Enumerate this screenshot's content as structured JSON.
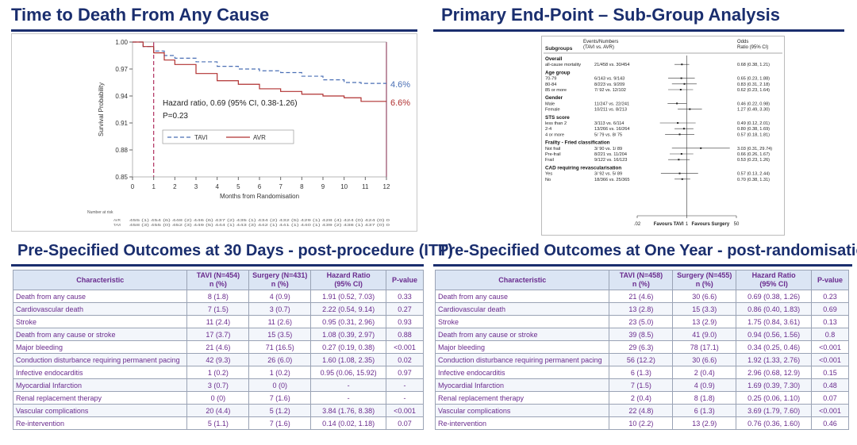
{
  "km": {
    "title": "Time to Death From Any Cause",
    "ylabel": "Survival Probability",
    "xlabel": "Months from Randomisation",
    "annotation_line1": "Hazard ratio, 0.69 (95% CI, 0.38-1.26)",
    "annotation_line2": "P=0.23",
    "tavi_label": "TAVI",
    "avr_label": "AVR",
    "tavi_end": "4.6%",
    "avr_end": "6.6%",
    "number_at_risk": "Number at risk",
    "risk_avr_label": "AVR",
    "risk_tavi_label": "TAVI",
    "risk_avr": "455 (1) 454 (6) 448 (2) 446 (6) 437 (2) 435 (1) 434 (2) 432 (5) 429 (1) 428 (4) 424 (0) 424 (0) 0",
    "risk_tavi": "458 (3) 455 (0) 452 (3) 449 (5) 444 (1) 443 (3) 442 (1) 441 (1) 440 (1) 439 (2) 438 (1) 437 (0) 0",
    "colors": {
      "tavi": "#4a6fb5",
      "avr": "#b03030",
      "marker": "#b03060"
    }
  },
  "chart_data": [
    {
      "type": "line",
      "title": "Time to Death From Any Cause",
      "xlabel": "Months from Randomisation",
      "ylabel": "Survival Probability",
      "xlim": [
        0,
        12
      ],
      "ylim": [
        0.85,
        1.0
      ],
      "x_ticks": [
        0,
        1,
        2,
        3,
        4,
        5,
        6,
        7,
        8,
        9,
        10,
        11,
        12
      ],
      "y_ticks": [
        "0.85",
        "0.88",
        "0.91",
        "0.94",
        "0.97",
        "1.00"
      ],
      "series": [
        {
          "name": "TAVI",
          "x": [
            0,
            0.5,
            1,
            1.5,
            2,
            3,
            4,
            5,
            6,
            7,
            8,
            9,
            10,
            10.8,
            12
          ],
          "values": [
            1.0,
            0.995,
            0.99,
            0.985,
            0.982,
            0.978,
            0.973,
            0.97,
            0.968,
            0.966,
            0.962,
            0.958,
            0.955,
            0.954,
            0.954
          ]
        },
        {
          "name": "AVR",
          "x": [
            0,
            0.5,
            1,
            1.5,
            2,
            3,
            4,
            5,
            6,
            7,
            8,
            9,
            10,
            10.8,
            12
          ],
          "values": [
            1.0,
            0.995,
            0.988,
            0.98,
            0.975,
            0.965,
            0.957,
            0.953,
            0.948,
            0.945,
            0.942,
            0.94,
            0.938,
            0.934,
            0.934
          ]
        }
      ]
    },
    {
      "type": "scatter",
      "title": "Primary End-Point – Sub-Group Analysis",
      "xlabel": "Favours TAVI / Favours Surgery",
      "xlim": [
        0.02,
        50
      ],
      "x_ticks": [
        ".02",
        "1",
        "50"
      ],
      "categories": [
        "all-cause mortality",
        "70-79",
        "80-84",
        "85 or more",
        "Male",
        "Female",
        "less than 2",
        "2-4",
        "4 or more",
        "Not frail",
        "Pre-frail",
        "Frail",
        "Yes",
        "No"
      ],
      "values": [
        0.68,
        0.65,
        0.83,
        0.62,
        0.46,
        1.27,
        0.49,
        0.8,
        0.57,
        3.03,
        0.66,
        0.53,
        0.57,
        0.7
      ],
      "lower": [
        0.38,
        0.23,
        0.31,
        0.23,
        0.22,
        0.49,
        0.12,
        0.38,
        0.18,
        0.31,
        0.26,
        0.23,
        0.13,
        0.38
      ],
      "upper": [
        1.21,
        1.88,
        2.18,
        1.64,
        0.98,
        3.3,
        2.01,
        1.69,
        1.81,
        29.74,
        1.67,
        1.26,
        2.44,
        1.31
      ]
    }
  ],
  "forest": {
    "title": "Primary End-Point – Sub-Group Analysis",
    "hdr_subgroups": "Subgroups",
    "hdr_events1": "Events/Numbers",
    "hdr_events2": "(TAVI vs. AVR)",
    "hdr_odds1": "Odds",
    "hdr_odds2": "Ratio (95% CI)",
    "favours_tavi": "Favours TAVI",
    "favours_surgery": "Favours Surgery",
    "tick_low": ".02",
    "tick_mid": "1",
    "tick_high": "50",
    "groups": [
      {
        "name": "Overall",
        "rows": [
          {
            "label": "all-cause mortality",
            "events": "21/458  vs.  30/454",
            "ci": "0.68 (0.38, 1.21)"
          }
        ]
      },
      {
        "name": "Age group",
        "rows": [
          {
            "label": "70-79",
            "events": "6/143  vs.   9/143",
            "ci": "0.65 (0.23, 1.88)"
          },
          {
            "label": "80-84",
            "events": "8/223  vs.   9/209",
            "ci": "0.83 (0.31, 2.18)"
          },
          {
            "label": "85 or more",
            "events": "7/ 92  vs.  12/102",
            "ci": "0.62 (0.23, 1.64)"
          }
        ]
      },
      {
        "name": "Gender",
        "rows": [
          {
            "label": "Male",
            "events": "11/247  vs.  22/241",
            "ci": "0.46 (0.22, 0.98)"
          },
          {
            "label": "Female",
            "events": "10/211  vs.   8/213",
            "ci": "1.27 (0.49, 3.30)"
          }
        ]
      },
      {
        "name": "STS score",
        "rows": [
          {
            "label": "less than 2",
            "events": "3/113  vs.   6/114",
            "ci": "0.49 (0.12, 2.01)"
          },
          {
            "label": "2-4",
            "events": "13/266  vs.  16/264",
            "ci": "0.80 (0.38, 1.69)"
          },
          {
            "label": "4 or more",
            "events": "5/ 79  vs.   8/ 75",
            "ci": "0.57 (0.18, 1.81)"
          }
        ]
      },
      {
        "name": "Frailty - Fried classification",
        "rows": [
          {
            "label": "Not frail",
            "events": "3/ 90  vs.   1/ 89",
            "ci": "3.03 (0.31, 29.74)"
          },
          {
            "label": "Pre-frail",
            "events": "8/221  vs.  11/204",
            "ci": "0.66 (0.26, 1.67)"
          },
          {
            "label": "Frail",
            "events": "9/122  vs.  16/123",
            "ci": "0.53 (0.23, 1.26)"
          }
        ]
      },
      {
        "name": "CAD requiring revascularisation",
        "rows": [
          {
            "label": "Yes",
            "events": "3/ 92  vs.   5/ 89",
            "ci": "0.57 (0.13, 2.44)"
          },
          {
            "label": "No",
            "events": "18/366  vs.  25/365",
            "ci": "0.70 (0.38, 1.31)"
          }
        ]
      }
    ]
  },
  "table30": {
    "title": "Pre-Specified Outcomes at 30 Days - post-procedure (ITT)",
    "headers": [
      "Characteristic",
      "TAVI (N=454)\nn (%)",
      "Surgery (N=431)\nn (%)",
      "Hazard Ratio\n(95% CI)",
      "P-value"
    ],
    "rows": [
      [
        "Death from any cause",
        "8 (1.8)",
        "4 (0.9)",
        "1.91 (0.52, 7.03)",
        "0.33"
      ],
      [
        "Cardiovascular death",
        "7  (1.5)",
        "3 (0.7)",
        "2.22 (0.54, 9.14)",
        "0.27"
      ],
      [
        "Stroke",
        "11 (2.4)",
        "11 (2.6)",
        "0.95 (0.31, 2.96)",
        "0.93"
      ],
      [
        "Death from any cause or stroke",
        "17 (3.7)",
        "15 (3.5)",
        "1.08 (0.39, 2.97)",
        "0.88"
      ],
      [
        "Major bleeding",
        "21 (4.6)",
        "71 (16.5)",
        "0.27 (0.19, 0.38)",
        "<0.001"
      ],
      [
        "Conduction disturbance requiring permanent pacing",
        "42 (9.3)",
        "26 (6.0)",
        "1.60 (1.08, 2.35)",
        "0.02"
      ],
      [
        "Infective endocarditis",
        "1 (0.2)",
        "1 (0.2)",
        "0.95 (0.06, 15.92)",
        "0.97"
      ],
      [
        "Myocardial Infarction",
        "3 (0.7)",
        "0 (0)",
        "-",
        "-"
      ],
      [
        "Renal replacement therapy",
        "0 (0)",
        "7 (1.6)",
        "-",
        "-"
      ],
      [
        "Vascular complications",
        "20 (4.4)",
        "5 (1.2)",
        "3.84 (1.76, 8.38)",
        "<0.001"
      ],
      [
        "Re-intervention",
        "5 (1.1)",
        "7 (1.6)",
        "0.14 (0.02, 1.18)",
        "0.07"
      ]
    ]
  },
  "table1y": {
    "title": "Pre-Specified Outcomes at One Year - post-randomisation",
    "headers": [
      "Characteristic",
      "TAVI (N=458)\nn (%)",
      "Surgery (N=455)\nn (%)",
      "Hazard Ratio\n(95% CI)",
      "P-value"
    ],
    "rows": [
      [
        "Death from any cause",
        "21 (4.6)",
        "30 (6.6)",
        "0.69 (0.38, 1.26)",
        "0.23"
      ],
      [
        "Cardiovascular death",
        "13 (2.8)",
        "15 (3.3)",
        "0.86 (0.40, 1.83)",
        "0.69"
      ],
      [
        "Stroke",
        "23 (5.0)",
        "13 (2.9)",
        "1.75 (0.84, 3.61)",
        "0.13"
      ],
      [
        "Death from any cause or stroke",
        "39 (8.5)",
        "41 (9.0)",
        "0.94 (0.56, 1.56)",
        "0.8"
      ],
      [
        "Major bleeding",
        "29 (6.3)",
        "78 (17.1)",
        "0.34 (0.25, 0.46)",
        "<0.001"
      ],
      [
        "Conduction disturbance requiring permanent pacing",
        "56 (12.2)",
        "30 (6.6)",
        "1.92 (1.33, 2.76)",
        "<0.001"
      ],
      [
        "Infective endocarditis",
        "6 (1.3)",
        "2 (0.4)",
        "2.96 (0.68, 12.9)",
        "0.15"
      ],
      [
        "Myocardial Infarction",
        "7 (1.5)",
        "4 (0.9)",
        "1.69 (0.39, 7.30)",
        "0.48"
      ],
      [
        "Renal replacement therapy",
        "2 (0.4)",
        "8 (1.8)",
        "0.25 (0.06, 1.10)",
        "0.07"
      ],
      [
        "Vascular complications",
        "22 (4.8)",
        "6 (1.3)",
        "3.69 (1.79, 7.60)",
        "<0.001"
      ],
      [
        "Re-intervention",
        "10 (2.2)",
        "13 (2.9)",
        "0.76 (0.36, 1.60)",
        "0.46"
      ]
    ]
  }
}
